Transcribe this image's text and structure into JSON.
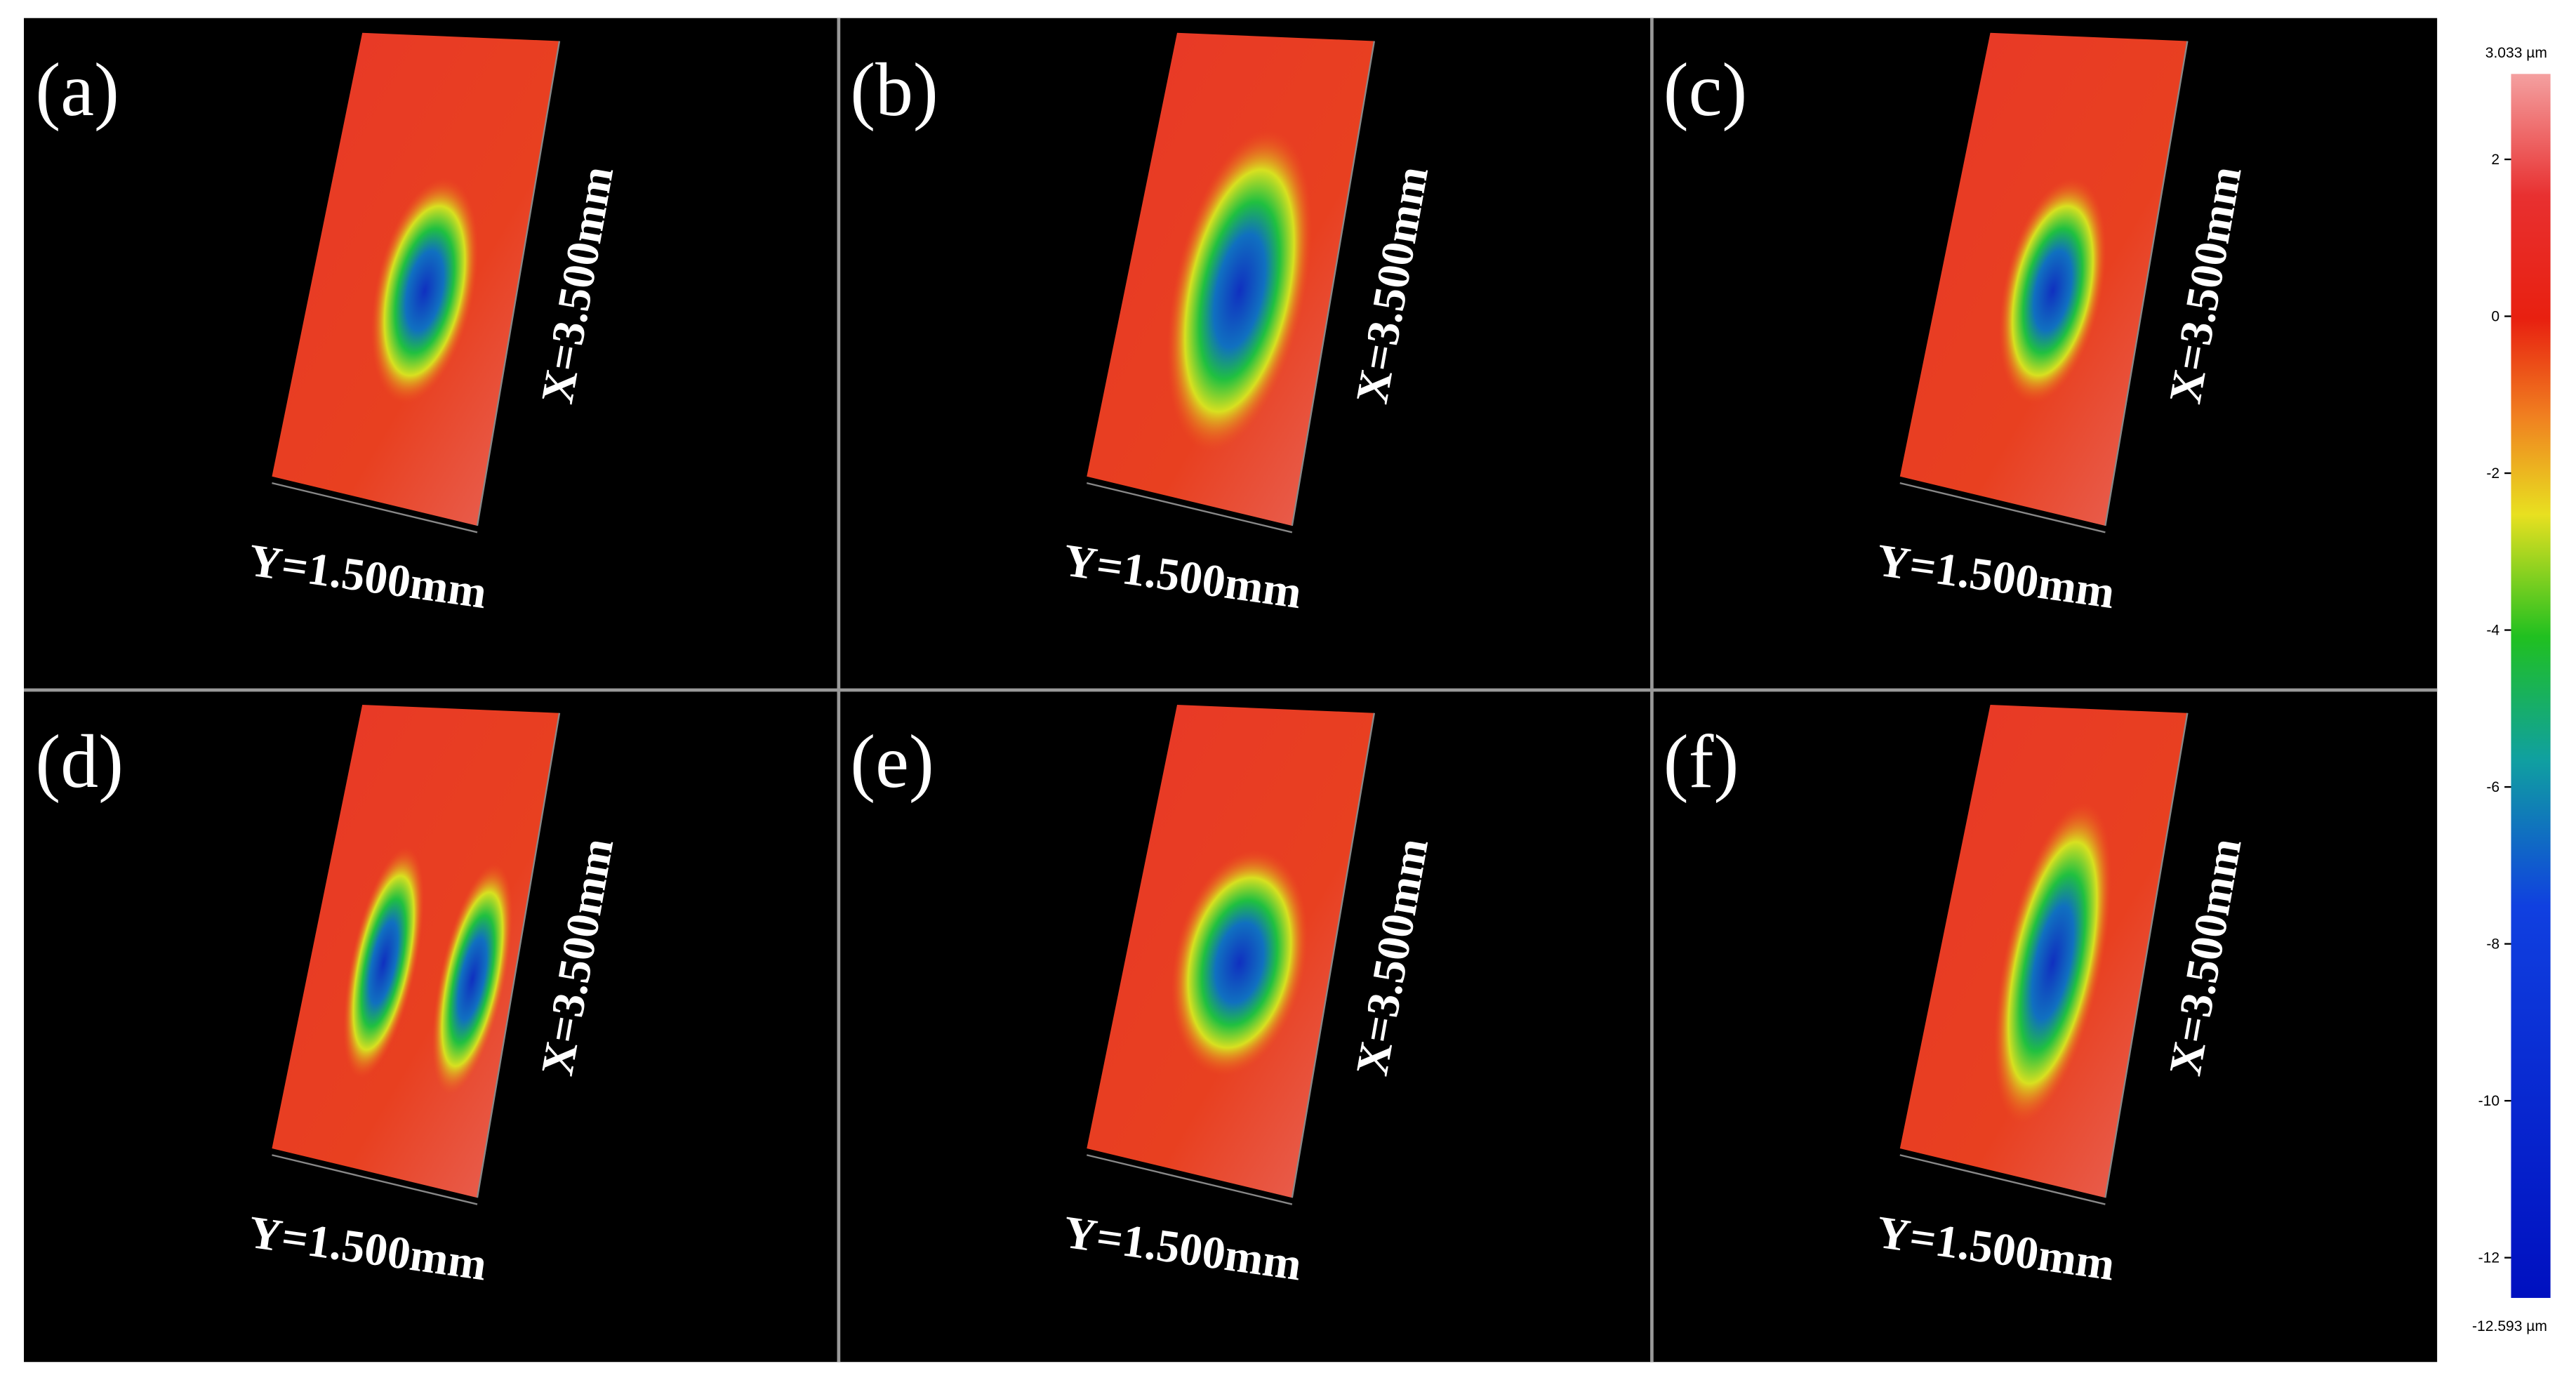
{
  "panels": [
    {
      "label": "(a)",
      "x_axis": "X=3.500mm",
      "y_axis": "Y=1.500mm"
    },
    {
      "label": "(b)",
      "x_axis": "X=3.500mm",
      "y_axis": "Y=1.500mm"
    },
    {
      "label": "(c)",
      "x_axis": "X=3.500mm",
      "y_axis": "Y=1.500mm"
    },
    {
      "label": "(d)",
      "x_axis": "X=3.500mm",
      "y_axis": "Y=1.500mm"
    },
    {
      "label": "(e)",
      "x_axis": "X=3.500mm",
      "y_axis": "Y=1.500mm"
    },
    {
      "label": "(f)",
      "x_axis": "X=3.500mm",
      "y_axis": "Y=1.500mm"
    }
  ],
  "colorbar": {
    "max": "3.033 µm",
    "min": "-12.593 µm",
    "ticks": [
      "2",
      "0",
      "-2",
      "-4",
      "-6",
      "-8",
      "-10",
      "-12"
    ]
  }
}
